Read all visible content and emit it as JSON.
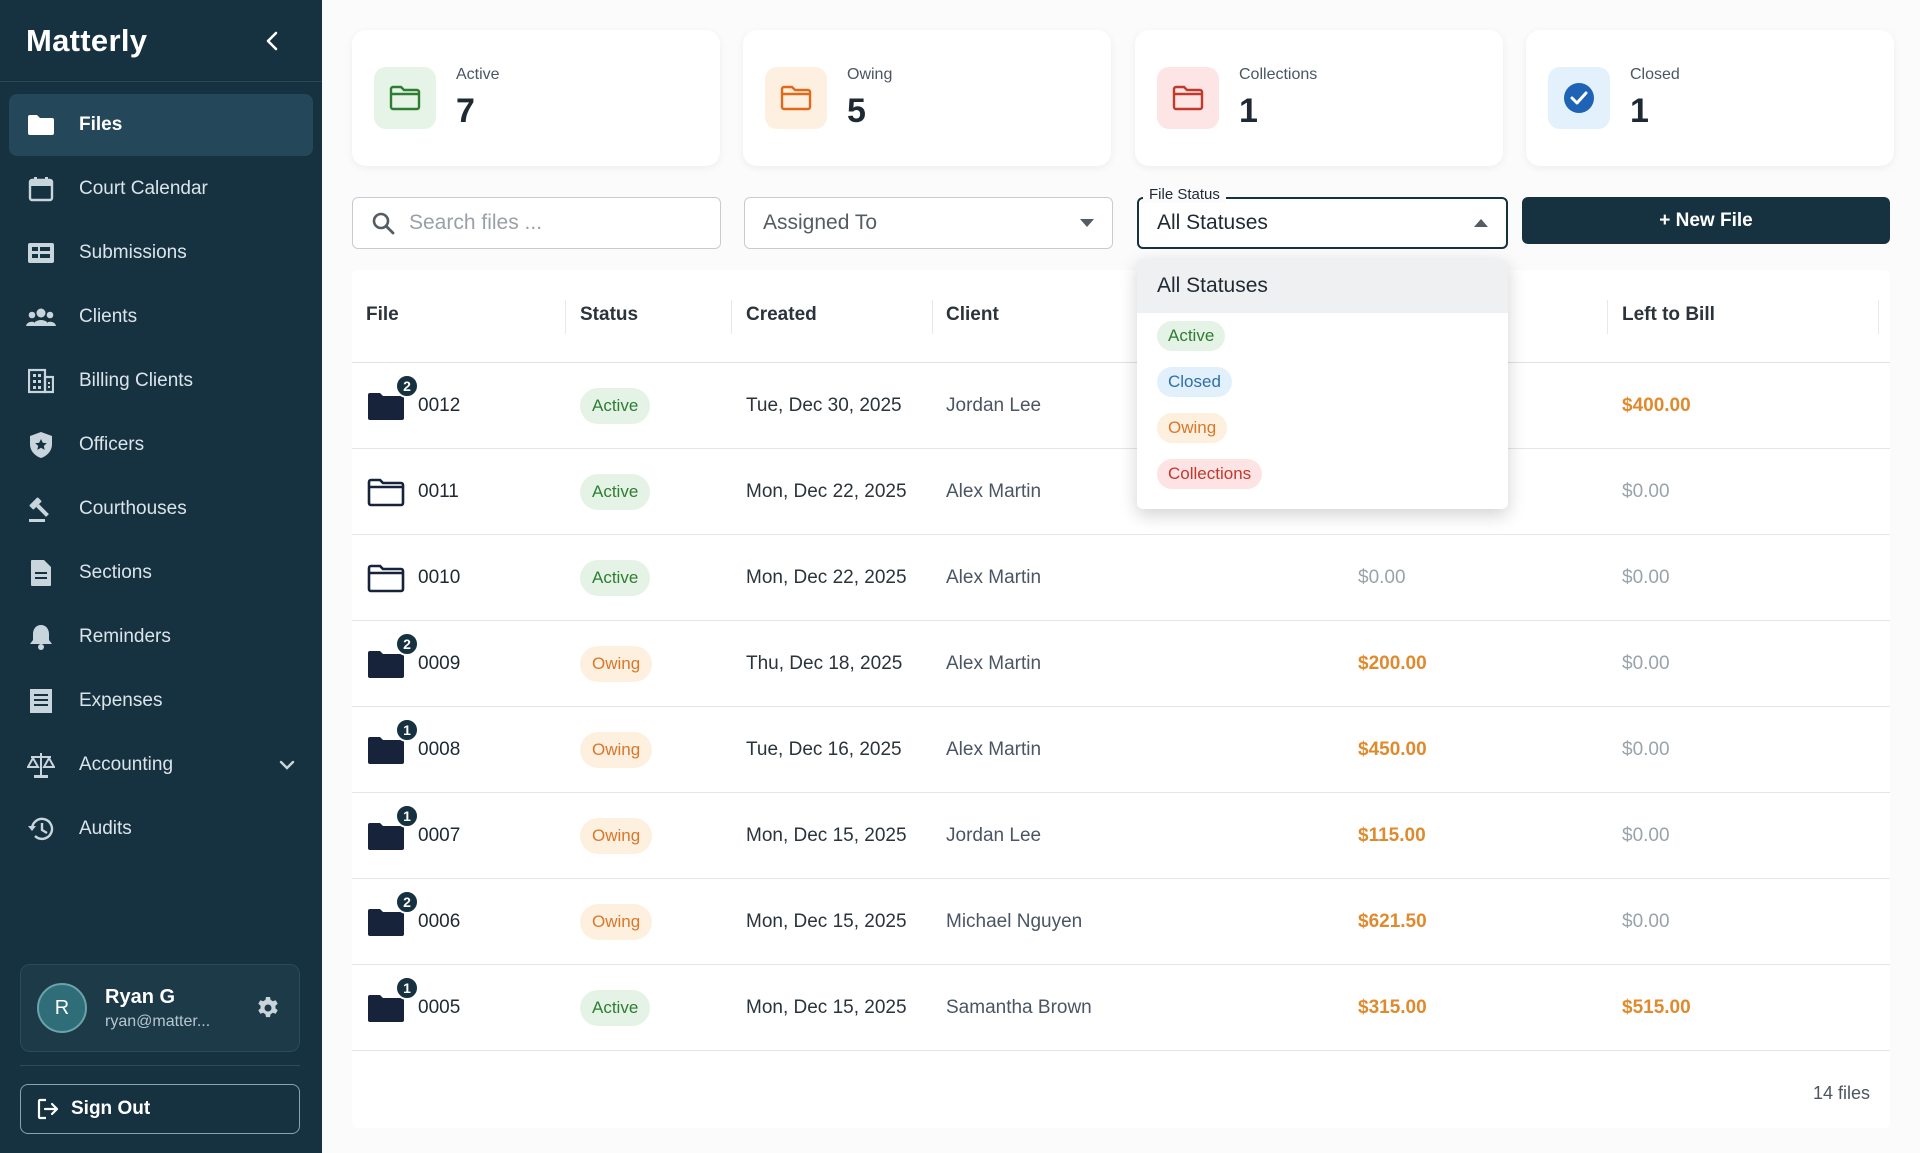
{
  "sidebar": {
    "brand": "Matterly",
    "items": [
      {
        "label": "Files",
        "icon": "folder-icon"
      },
      {
        "label": "Court Calendar",
        "icon": "calendar-icon"
      },
      {
        "label": "Submissions",
        "icon": "submissions-icon"
      },
      {
        "label": "Clients",
        "icon": "people-icon"
      },
      {
        "label": "Billing Clients",
        "icon": "building-icon"
      },
      {
        "label": "Officers",
        "icon": "shield-icon"
      },
      {
        "label": "Courthouses",
        "icon": "gavel-icon"
      },
      {
        "label": "Sections",
        "icon": "document-icon"
      },
      {
        "label": "Reminders",
        "icon": "bell-icon"
      },
      {
        "label": "Expenses",
        "icon": "receipt-icon"
      },
      {
        "label": "Accounting",
        "icon": "scale-icon"
      },
      {
        "label": "Audits",
        "icon": "history-icon"
      }
    ],
    "user": {
      "initial": "R",
      "name": "Ryan G",
      "email": "ryan@matter..."
    },
    "sign_out": "Sign Out"
  },
  "stats": [
    {
      "label": "Active",
      "value": "7",
      "color": "#2e7d32",
      "bg": "#e6f4e8"
    },
    {
      "label": "Owing",
      "value": "5",
      "color": "#e06a1b",
      "bg": "#fdf0e0"
    },
    {
      "label": "Collections",
      "value": "1",
      "color": "#c0392b",
      "bg": "#fde5e6"
    },
    {
      "label": "Closed",
      "value": "1",
      "color": "#1e63b5",
      "bg": "#e3f1fc"
    }
  ],
  "filters": {
    "search_placeholder": "Search files ...",
    "assigned_to": "Assigned To",
    "status_label": "File Status",
    "status_value": "All Statuses",
    "new_file": "+ New File"
  },
  "status_options": [
    "All Statuses",
    "Active",
    "Closed",
    "Owing",
    "Collections"
  ],
  "table": {
    "headers": [
      "File",
      "Status",
      "Created",
      "Client",
      "Left to Bill"
    ],
    "rows": [
      {
        "file": "0012",
        "badge": "2",
        "filled": true,
        "status": "Active",
        "created": "Tue, Dec 30, 2025",
        "client": "Jordan Lee",
        "owing": "",
        "left": "$400.00",
        "left_hi": true
      },
      {
        "file": "0011",
        "badge": "",
        "filled": false,
        "status": "Active",
        "created": "Mon, Dec 22, 2025",
        "client": "Alex Martin",
        "owing": "",
        "left": "$0.00",
        "left_hi": false
      },
      {
        "file": "0010",
        "badge": "",
        "filled": false,
        "status": "Active",
        "created": "Mon, Dec 22, 2025",
        "client": "Alex Martin",
        "owing": "$0.00",
        "owing_hi": false,
        "left": "$0.00",
        "left_hi": false
      },
      {
        "file": "0009",
        "badge": "2",
        "filled": true,
        "status": "Owing",
        "created": "Thu, Dec 18, 2025",
        "client": "Alex Martin",
        "owing": "$200.00",
        "owing_hi": true,
        "left": "$0.00",
        "left_hi": false
      },
      {
        "file": "0008",
        "badge": "1",
        "filled": true,
        "status": "Owing",
        "created": "Tue, Dec 16, 2025",
        "client": "Alex Martin",
        "owing": "$450.00",
        "owing_hi": true,
        "left": "$0.00",
        "left_hi": false
      },
      {
        "file": "0007",
        "badge": "1",
        "filled": true,
        "status": "Owing",
        "created": "Mon, Dec 15, 2025",
        "client": "Jordan Lee",
        "owing": "$115.00",
        "owing_hi": true,
        "left": "$0.00",
        "left_hi": false
      },
      {
        "file": "0006",
        "badge": "2",
        "filled": true,
        "status": "Owing",
        "created": "Mon, Dec 15, 2025",
        "client": "Michael Nguyen",
        "owing": "$621.50",
        "owing_hi": true,
        "left": "$0.00",
        "left_hi": false
      },
      {
        "file": "0005",
        "badge": "1",
        "filled": true,
        "status": "Active",
        "created": "Mon, Dec 15, 2025",
        "client": "Samantha Brown",
        "owing": "$315.00",
        "owing_hi": true,
        "left": "$515.00",
        "left_hi": true
      }
    ],
    "count": "14 files"
  }
}
